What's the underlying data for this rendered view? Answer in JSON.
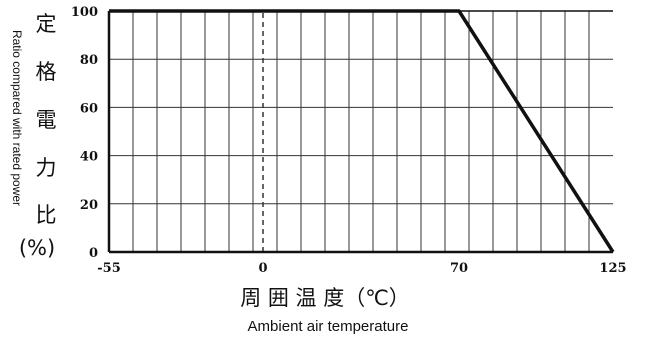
{
  "chart_data": {
    "type": "line",
    "title": "",
    "ylabel_jp": [
      "定",
      "格",
      "電",
      "力",
      "比"
    ],
    "ylabel_unit": "(%)",
    "ylabel_en": "Ratio compared with rated power",
    "xlabel_jp": "周 囲 温 度（℃）",
    "xlabel_en": "Ambient air temperature",
    "xlim": [
      -55,
      125
    ],
    "ylim": [
      0,
      100
    ],
    "x_ticks": [
      {
        "value": -55,
        "label": "-55"
      },
      {
        "value": 0,
        "label": "0"
      },
      {
        "value": 70,
        "label": "70"
      },
      {
        "value": 125,
        "label": "125"
      }
    ],
    "y_ticks": [
      {
        "value": 0,
        "label": "0"
      },
      {
        "value": 20,
        "label": "20"
      },
      {
        "value": 40,
        "label": "40"
      },
      {
        "value": 60,
        "label": "60"
      },
      {
        "value": 80,
        "label": "80"
      },
      {
        "value": 100,
        "label": "100"
      }
    ],
    "grid": true,
    "reference_line_x": 0,
    "series": [
      {
        "x": [
          -55,
          70,
          125
        ],
        "y": [
          100,
          100,
          0
        ]
      }
    ]
  }
}
